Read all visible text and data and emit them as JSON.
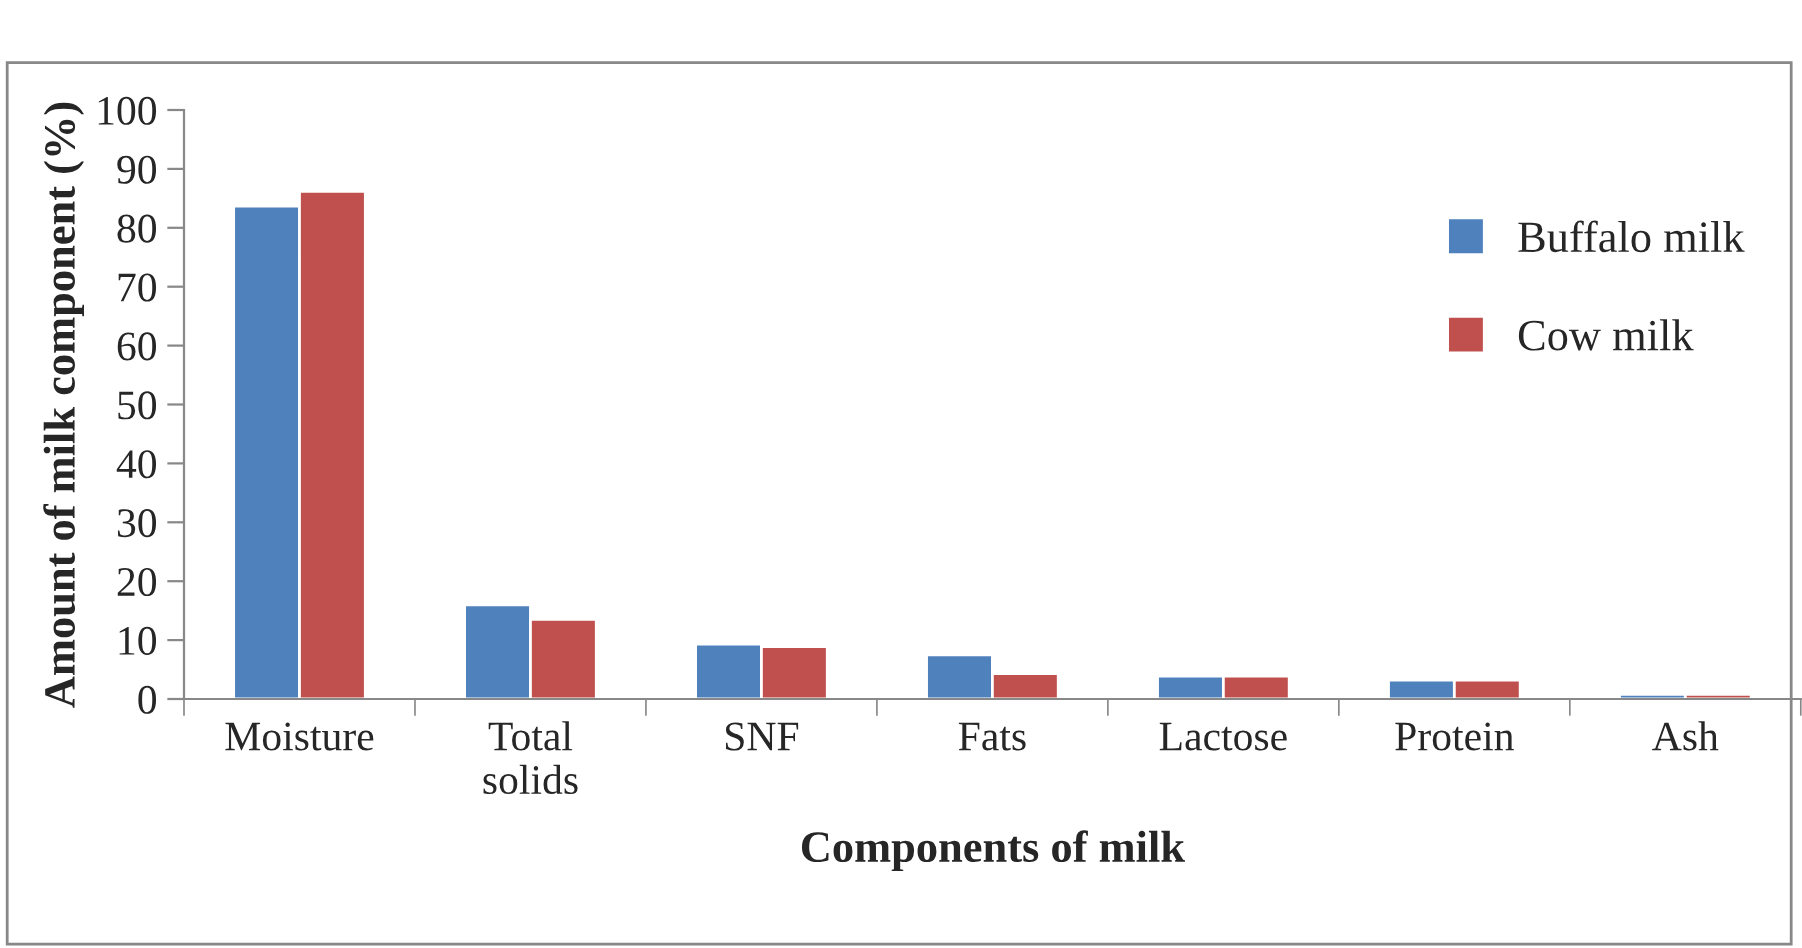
{
  "chart_data": {
    "type": "bar",
    "xlabel": "Components of milk",
    "ylabel": "Amount of milk component (%)",
    "categories": [
      "Moisture",
      "Total\nsolids",
      "SNF",
      "Fats",
      "Lactose",
      "Protein",
      "Ash"
    ],
    "series": [
      {
        "name": "Buffalo milk",
        "color": "#4f81bd",
        "values": [
          83.7,
          16.0,
          9.3,
          7.5,
          3.9,
          3.2,
          0.8
        ]
      },
      {
        "name": "Cow milk",
        "color": "#c0504d",
        "values": [
          86.2,
          13.5,
          8.9,
          4.3,
          3.9,
          3.2,
          0.8
        ]
      }
    ],
    "ylim": [
      0,
      100
    ],
    "yticks": [
      0,
      10,
      20,
      30,
      40,
      50,
      60,
      70,
      80,
      90,
      100
    ],
    "grid": false,
    "legend": "top right"
  }
}
